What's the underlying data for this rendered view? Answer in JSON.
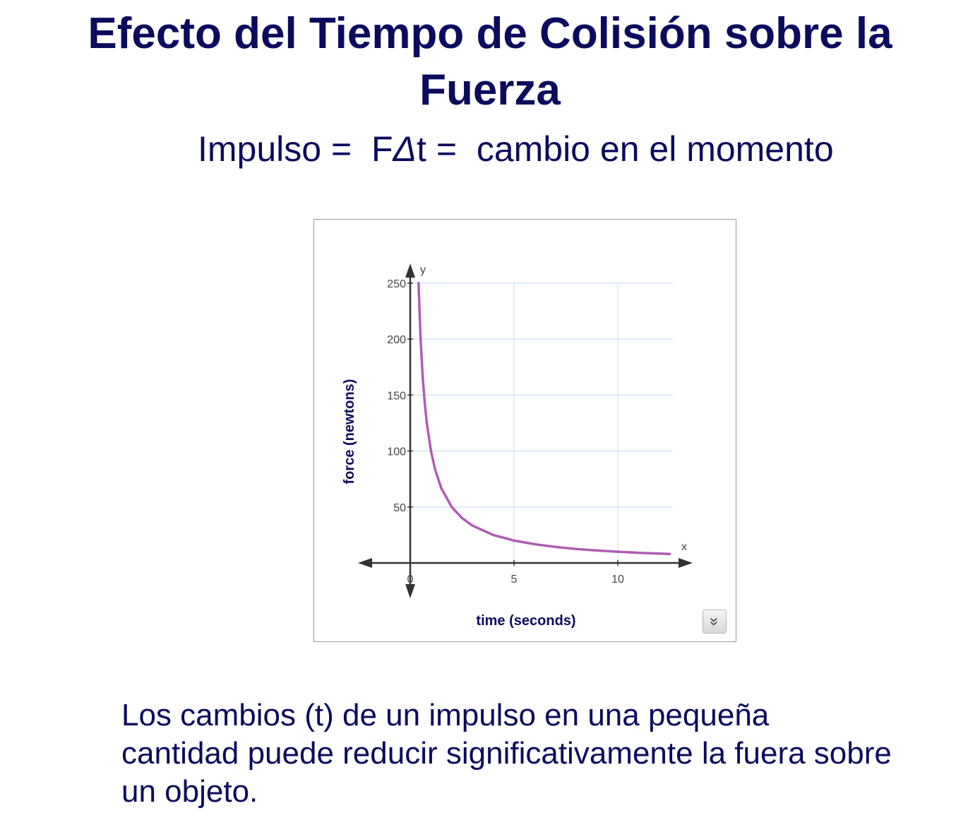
{
  "slide": {
    "title_line1": "Efecto del Tiempo de Colisión sobre la",
    "title_line2": "Fuerza",
    "formula_part1": "Impulso =  F",
    "formula_delta": "Δ",
    "formula_part2": "t =  cambio en el momento",
    "caption_line1": "Los cambios (t) de un impulso en una pequeña",
    "caption_line2": "cantidad puede reducir significativamente la fuera sobre",
    "caption_line3": "un objeto.",
    "text_color": "#0b0b5e"
  },
  "chart_data": {
    "type": "line",
    "title": "",
    "xlabel": "time (seconds)",
    "ylabel": "force (newtons)",
    "x_axis_name": "x",
    "y_axis_name": "y",
    "xlim": [
      -2.5,
      13.5
    ],
    "ylim": [
      -20,
      260
    ],
    "x_ticks": [
      0,
      5,
      10
    ],
    "x_tick_labels": [
      "0",
      "5",
      "10"
    ],
    "y_ticks": [
      50,
      100,
      150,
      200,
      250
    ],
    "y_tick_labels": [
      "50",
      "100",
      "150",
      "200",
      "250"
    ],
    "grid": true,
    "grid_x": [
      5,
      10
    ],
    "grid_y": [
      50,
      100,
      150,
      200,
      250
    ],
    "legend": "none",
    "series": [
      {
        "function": "y = 100 / x",
        "x": [
          0.4,
          0.5,
          0.6,
          0.7,
          0.8,
          1.0,
          1.2,
          1.5,
          2,
          2.5,
          3,
          4,
          5,
          6,
          7,
          8,
          9,
          10,
          11,
          12,
          12.5
        ],
        "y": [
          250,
          200,
          166.7,
          142.9,
          125,
          100,
          83.3,
          66.7,
          50,
          40,
          33.3,
          25,
          20,
          16.7,
          14.3,
          12.5,
          11.1,
          10,
          9.1,
          8.3,
          8
        ],
        "color": "#b05cb4"
      }
    ],
    "grid_color": "#cfe3f7",
    "axis_color": "#333333"
  },
  "controls": {
    "expand_icon": "double-chevron-down-icon",
    "expand_glyph": "»"
  }
}
